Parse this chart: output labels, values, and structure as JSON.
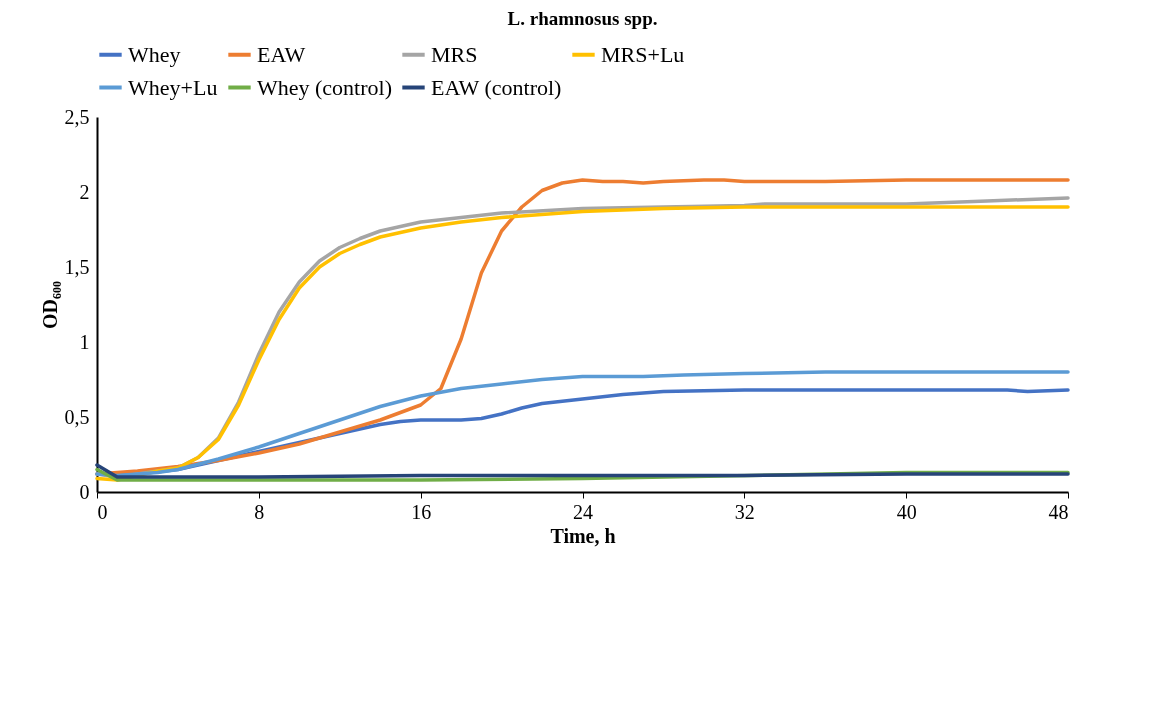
{
  "chart_data": {
    "type": "line",
    "title": "L. rhamnosus spp.",
    "xlabel": "Time, h",
    "ylabel": "OD₆₀₀",
    "xlim": [
      0,
      48
    ],
    "xticks": [
      0,
      8,
      16,
      24,
      32,
      40,
      48
    ],
    "ylim": [
      0,
      2.5
    ],
    "yticks": [
      0,
      {
        "value": 0.5,
        "label": "0,5"
      },
      1,
      {
        "value": 1.5,
        "label": "1,5"
      },
      2,
      {
        "value": 2.5,
        "label": "2,5"
      }
    ],
    "legend": "top",
    "grid": false,
    "line_style": "solid",
    "marker": "none",
    "series": [
      {
        "name": "Whey",
        "color": "#4472c4",
        "x": [
          0,
          1,
          2,
          4,
          6,
          8,
          10,
          12,
          14,
          15,
          16,
          18,
          19,
          20,
          21,
          22,
          24,
          26,
          28,
          32,
          36,
          40,
          44,
          45,
          46,
          48
        ],
        "values": [
          0.12,
          0.12,
          0.12,
          0.15,
          0.21,
          0.27,
          0.33,
          0.39,
          0.45,
          0.47,
          0.48,
          0.48,
          0.49,
          0.52,
          0.56,
          0.59,
          0.62,
          0.65,
          0.67,
          0.68,
          0.68,
          0.68,
          0.68,
          0.68,
          0.67,
          0.68
        ]
      },
      {
        "name": "EAW",
        "color": "#ed7d31",
        "x": [
          0,
          1,
          2,
          4,
          6,
          8,
          10,
          12,
          14,
          16,
          17,
          18,
          19,
          20,
          21,
          22,
          23,
          24,
          25,
          26,
          27,
          28,
          30,
          31,
          32,
          36,
          40,
          48
        ],
        "values": [
          0.12,
          0.13,
          0.14,
          0.17,
          0.21,
          0.26,
          0.32,
          0.4,
          0.48,
          0.58,
          0.69,
          1.02,
          1.46,
          1.74,
          1.9,
          2.01,
          2.06,
          2.08,
          2.07,
          2.07,
          2.06,
          2.07,
          2.08,
          2.08,
          2.07,
          2.07,
          2.08,
          2.08
        ]
      },
      {
        "name": "MRS",
        "color": "#a5a5a5",
        "x": [
          0,
          1,
          2,
          3,
          4,
          5,
          6,
          7,
          8,
          9,
          10,
          11,
          12,
          13,
          14,
          15,
          16,
          18,
          20,
          24,
          28,
          32,
          33,
          40,
          44,
          48
        ],
        "values": [
          0.12,
          0.1,
          0.12,
          0.14,
          0.16,
          0.23,
          0.36,
          0.6,
          0.92,
          1.2,
          1.4,
          1.54,
          1.63,
          1.69,
          1.74,
          1.77,
          1.8,
          1.83,
          1.86,
          1.89,
          1.9,
          1.91,
          1.92,
          1.92,
          1.94,
          1.96
        ]
      },
      {
        "name": "MRS+Lu",
        "color": "#ffc000",
        "x": [
          0,
          1,
          2,
          3,
          4,
          5,
          6,
          7,
          8,
          9,
          10,
          11,
          12,
          13,
          14,
          15,
          16,
          18,
          20,
          24,
          28,
          32,
          40,
          48
        ],
        "values": [
          0.09,
          0.08,
          0.11,
          0.14,
          0.16,
          0.23,
          0.35,
          0.58,
          0.88,
          1.15,
          1.36,
          1.5,
          1.59,
          1.65,
          1.7,
          1.73,
          1.76,
          1.8,
          1.83,
          1.87,
          1.89,
          1.9,
          1.9,
          1.9
        ]
      },
      {
        "name": "Whey+Lu",
        "color": "#5b9bd5",
        "x": [
          0,
          1,
          2,
          3,
          4,
          6,
          8,
          10,
          12,
          14,
          16,
          18,
          20,
          22,
          24,
          27,
          29,
          32,
          36,
          40,
          44,
          48
        ],
        "values": [
          0.12,
          0.11,
          0.12,
          0.13,
          0.15,
          0.22,
          0.3,
          0.39,
          0.48,
          0.57,
          0.64,
          0.69,
          0.72,
          0.75,
          0.77,
          0.77,
          0.78,
          0.79,
          0.8,
          0.8,
          0.8,
          0.8
        ]
      },
      {
        "name": "Whey (control)",
        "color": "#70ad47",
        "x": [
          0,
          1,
          8,
          16,
          24,
          40,
          48
        ],
        "values": [
          0.15,
          0.08,
          0.08,
          0.08,
          0.09,
          0.13,
          0.13
        ]
      },
      {
        "name": "EAW (control)",
        "color": "#264478",
        "x": [
          0,
          1,
          8,
          16,
          24,
          32,
          40,
          48
        ],
        "values": [
          0.18,
          0.1,
          0.1,
          0.11,
          0.11,
          0.11,
          0.12,
          0.12
        ]
      }
    ]
  }
}
